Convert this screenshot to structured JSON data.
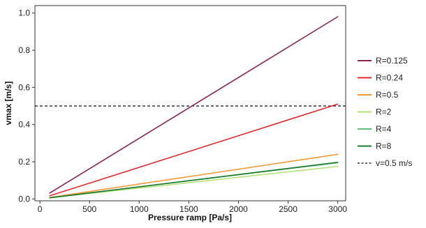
{
  "chart_data": {
    "type": "line",
    "xlabel": "Pressure ramp [Pa/s]",
    "ylabel": "vmax [m/s]",
    "xlim": [
      -50,
      3080
    ],
    "ylim": [
      -0.01,
      1.04
    ],
    "xticks": [
      0,
      500,
      1000,
      1500,
      2000,
      2500,
      3000
    ],
    "yticks": [
      0.0,
      0.2,
      0.4,
      0.6,
      0.8,
      1.0
    ],
    "xtick_labels": [
      "0",
      "500",
      "1000",
      "1500",
      "2000",
      "2500",
      "3000"
    ],
    "ytick_labels": [
      "0.0",
      "0.2",
      "0.4",
      "0.6",
      "0.8",
      "1.0"
    ],
    "grid": false,
    "legend_position": "right",
    "series": [
      {
        "name": "R=0.125",
        "color": "#8b2252",
        "x": [
          100,
          3000
        ],
        "y": [
          0.032,
          0.98
        ]
      },
      {
        "name": "R=0.24",
        "color": "#e8262a",
        "x": [
          100,
          3000
        ],
        "y": [
          0.017,
          0.51
        ]
      },
      {
        "name": "R=0.5",
        "color": "#f59a3b",
        "x": [
          100,
          3000
        ],
        "y": [
          0.008,
          0.24
        ]
      },
      {
        "name": "R=2",
        "color": "#b5e27a",
        "x": [
          100,
          3000
        ],
        "y": [
          0.006,
          0.175
        ]
      },
      {
        "name": "R=4",
        "color": "#5dbb7e",
        "x": [
          100,
          3000
        ],
        "y": [
          0.006,
          0.195
        ]
      },
      {
        "name": "R=8",
        "color": "#1e7a2e",
        "x": [
          100,
          3000
        ],
        "y": [
          0.006,
          0.197
        ]
      }
    ],
    "reference_line": {
      "name": "v=0.5 m/s",
      "y": 0.5,
      "style": "dashed",
      "color": "#111111"
    }
  }
}
